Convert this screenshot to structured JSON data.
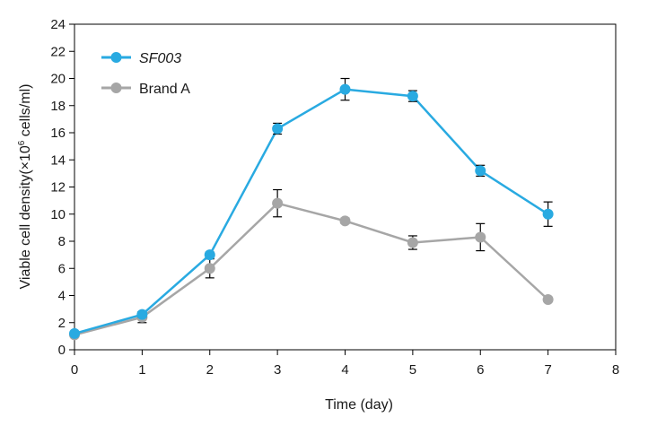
{
  "chart_data": {
    "type": "line",
    "xlabel": "Time (day)",
    "ylabel_parts": [
      "Viable cell density(×10",
      "6",
      " cells/ml)"
    ],
    "xlim": [
      0,
      8
    ],
    "ylim": [
      0,
      24
    ],
    "x_ticks": [
      0,
      1,
      2,
      3,
      4,
      5,
      6,
      7,
      8
    ],
    "y_ticks": [
      0,
      2,
      4,
      6,
      8,
      10,
      12,
      14,
      16,
      18,
      20,
      22,
      24
    ],
    "x_tick_labels": [
      "0",
      "1",
      "2",
      "3",
      "4",
      "5",
      "6",
      "7",
      "8"
    ],
    "y_tick_labels": [
      "0",
      "2",
      "4",
      "6",
      "8",
      "10",
      "12",
      "14",
      "16",
      "18",
      "20",
      "22",
      "24"
    ],
    "grid": false,
    "legend_position": "top-left",
    "series": [
      {
        "name": "SF003",
        "color": "#29aae1",
        "italic": true,
        "x": [
          0,
          1,
          2,
          3,
          4,
          5,
          6,
          7
        ],
        "y": [
          1.2,
          2.6,
          7.0,
          16.3,
          19.2,
          18.7,
          13.2,
          10.0
        ],
        "error": [
          0.1,
          0.2,
          0.2,
          0.4,
          0.8,
          0.4,
          0.4,
          0.9
        ]
      },
      {
        "name": "Brand A",
        "color": "#a6a6a6",
        "italic": false,
        "x": [
          0,
          1,
          2,
          3,
          4,
          5,
          6,
          7
        ],
        "y": [
          1.1,
          2.4,
          6.0,
          10.8,
          9.5,
          7.9,
          8.3,
          3.7
        ],
        "error": [
          0.1,
          0.4,
          0.7,
          1.0,
          0.2,
          0.5,
          1.0,
          0.1
        ]
      }
    ]
  }
}
